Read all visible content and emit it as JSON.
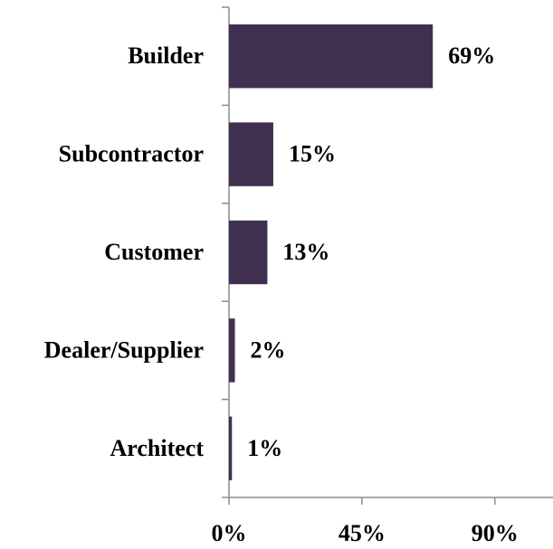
{
  "chart_data": {
    "type": "bar",
    "orientation": "horizontal",
    "categories": [
      "Builder",
      "Subcontractor",
      "Customer",
      "Dealer/Supplier",
      "Architect"
    ],
    "values": [
      69,
      15,
      13,
      2,
      1
    ],
    "value_labels": [
      "69%",
      "15%",
      "13%",
      "2%",
      "1%"
    ],
    "color": "#3f3050",
    "xlim": [
      0,
      110
    ],
    "xticks": [
      {
        "value": 0,
        "label": "0%"
      },
      {
        "value": 45,
        "label": "45%"
      },
      {
        "value": 90,
        "label": "90%"
      }
    ],
    "grid": false
  }
}
